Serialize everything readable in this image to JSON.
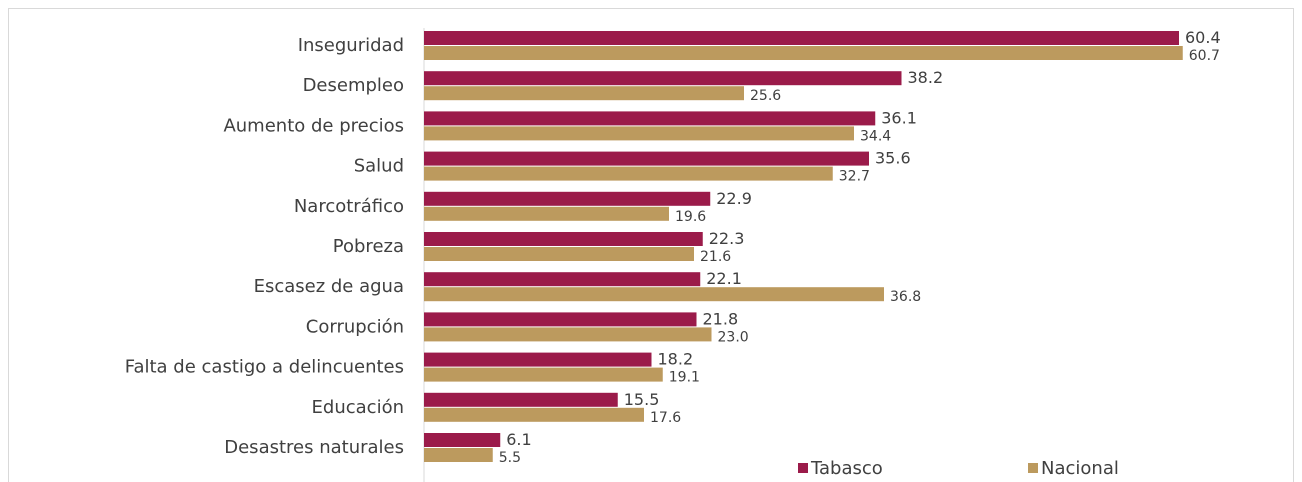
{
  "chart_data": {
    "type": "bar",
    "orientation": "horizontal",
    "categories": [
      "Inseguridad",
      "Desempleo",
      "Aumento de precios",
      "Salud",
      "Narcotráfico",
      "Pobreza",
      "Escasez de agua",
      "Corrupción",
      "Falta de castigo a delincuentes",
      "Educación",
      "Desastres naturales"
    ],
    "series": [
      {
        "name": "Tabasco",
        "color": "#9b1b4a",
        "values": [
          60.4,
          38.2,
          36.1,
          35.6,
          22.9,
          22.3,
          22.1,
          21.8,
          18.2,
          15.5,
          6.1
        ],
        "labels": [
          "60.4",
          "38.2",
          "36.1",
          "35.6",
          "22.9",
          "22.3",
          "22.1",
          "21.8",
          "18.2",
          "15.5",
          "6.1"
        ]
      },
      {
        "name": "Nacional",
        "color": "#bc9a5e",
        "values": [
          60.7,
          25.6,
          34.4,
          32.7,
          19.6,
          21.6,
          36.8,
          23.0,
          19.1,
          17.6,
          5.5
        ],
        "labels": [
          "60.7",
          "25.6",
          "34.4",
          "32.7",
          "19.6",
          "21.6",
          "36.8",
          "23.0",
          "19.1",
          "17.6",
          "5.5"
        ]
      }
    ],
    "xlim": [
      0,
      70
    ],
    "grid": false,
    "legend_position": "bottom-right"
  }
}
